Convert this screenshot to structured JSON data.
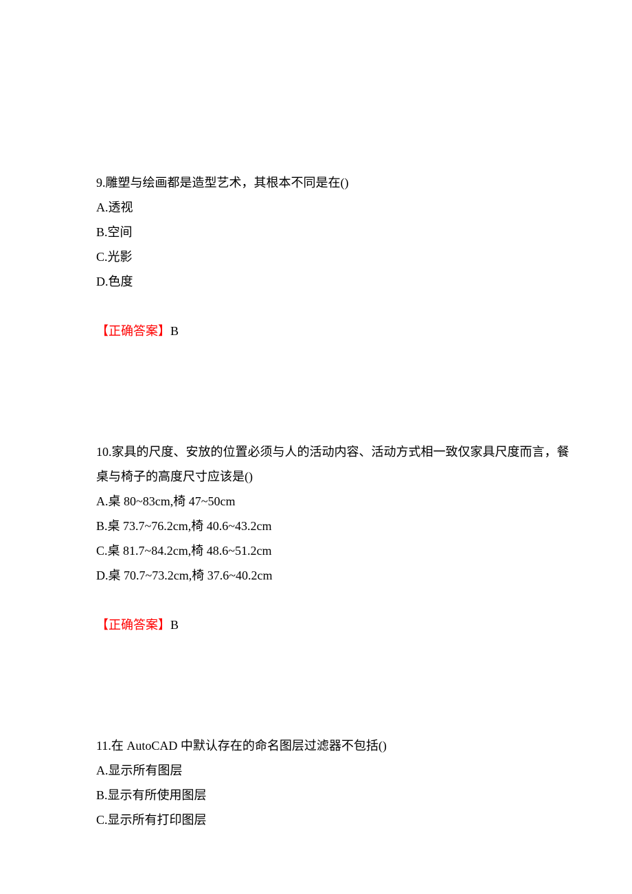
{
  "questions": [
    {
      "number": "9.",
      "text": "雕塑与绘画都是造型艺术，其根本不同是在()",
      "options": {
        "a": "A.透视",
        "b": "B.空间",
        "c": "C.光影",
        "d": "D.色度"
      },
      "answer_label": "【正确答案】",
      "answer_value": "B"
    },
    {
      "number": "10.",
      "text": "家具的尺度、安放的位置必须与人的活动内容、活动方式相一致仅家具尺度而言，餐桌与椅子的高度尺寸应该是()",
      "options": {
        "a": "A.桌 80~83cm,椅 47~50cm",
        "b": "B.桌 73.7~76.2cm,椅 40.6~43.2cm",
        "c": "C.桌 81.7~84.2cm,椅 48.6~51.2cm",
        "d": "D.桌 70.7~73.2cm,椅 37.6~40.2cm"
      },
      "answer_label": "【正确答案】",
      "answer_value": "B"
    },
    {
      "number": "11.",
      "text": "在 AutoCAD 中默认存在的命名图层过滤器不包括()",
      "options": {
        "a": "A.显示所有图层",
        "b": "B.显示有所使用图层",
        "c": "C.显示所有打印图层"
      }
    }
  ]
}
